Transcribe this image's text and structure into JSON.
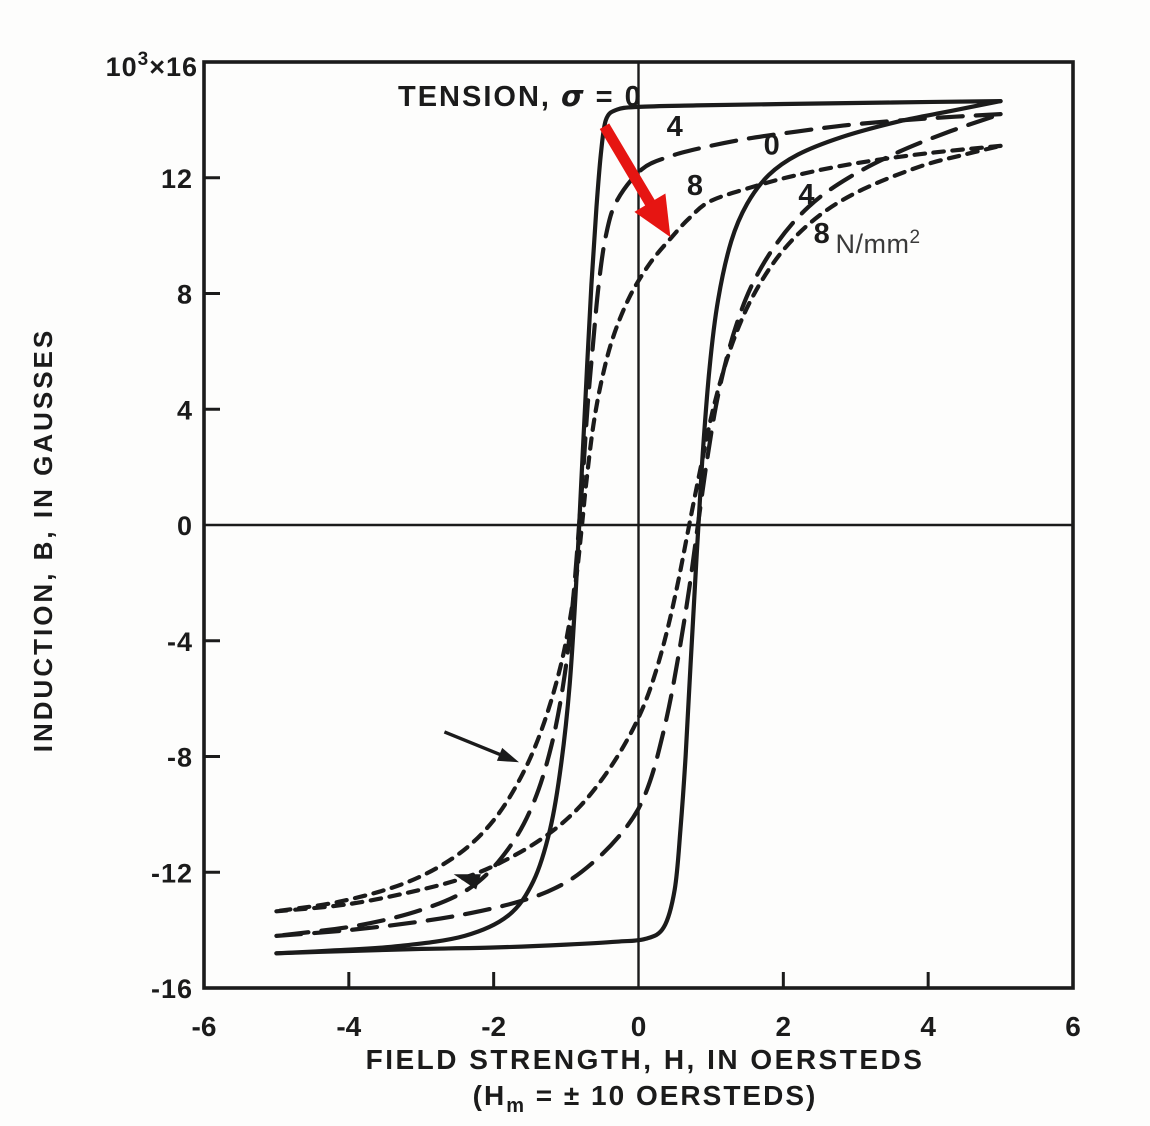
{
  "figure": {
    "background": "#fdfdfc",
    "ink_color": "#1b1b1b",
    "annotation_red": "#e61512",
    "unit_text_color": "#3a3a3a"
  },
  "chart_data": {
    "type": "line",
    "title": "TENSION, σ = 0",
    "xlabel": "FIELD STRENGTH, H, IN OERSTEDS",
    "xlabel_note": "(Hm = ± 10 OERSTEDS)",
    "ylabel": "INDUCTION, B, IN GAUSSES",
    "y_scale_label": "10³×16",
    "y_units": "10³ gauss",
    "unit_label": "N/mm²",
    "xlim": [
      -6,
      6
    ],
    "ylim": [
      -16,
      16
    ],
    "grid": false,
    "legend": "curve labels inline (tension sigma in N/mm²: 0 solid, 4 long-dash, 8 short-dash)",
    "text_parts": {
      "title_prefix": "TENSION, ",
      "title_sigma": "σ",
      "title_eq": " = 0",
      "scale_base": "10",
      "scale_exp": "3",
      "scale_mult": "×16",
      "note_open": "(H",
      "note_sub": "m",
      "note_rest": " = ± 10 OERSTEDS)",
      "unit_base": "N/mm",
      "unit_exp": "2"
    },
    "x_ticks": [
      {
        "value": -6,
        "label": "-6"
      },
      {
        "value": -4,
        "label": "-4"
      },
      {
        "value": -2,
        "label": "-2"
      },
      {
        "value": 0,
        "label": "0"
      },
      {
        "value": 2,
        "label": "2"
      },
      {
        "value": 4,
        "label": "4"
      },
      {
        "value": 6,
        "label": "6"
      }
    ],
    "y_ticks": [
      {
        "value": 12,
        "label": "12"
      },
      {
        "value": 8,
        "label": "8"
      },
      {
        "value": 4,
        "label": "4"
      },
      {
        "value": 0,
        "label": "0"
      },
      {
        "value": -4,
        "label": "-4"
      },
      {
        "value": -8,
        "label": "-8"
      },
      {
        "value": -12,
        "label": "-12"
      },
      {
        "value": -16,
        "label": "-16"
      }
    ],
    "x_tick_marks": [
      -4,
      -2,
      2,
      4
    ],
    "y_tick_marks": [
      12,
      8,
      4,
      -4,
      -8,
      -12
    ],
    "series": [
      {
        "name": "sigma-0",
        "sigma": 0,
        "style": "solid",
        "descending": [
          [
            5,
            14.65
          ],
          [
            3.5,
            14.6
          ],
          [
            2,
            14.55
          ],
          [
            0.8,
            14.5
          ],
          [
            0,
            14.45
          ],
          [
            -0.3,
            14.35
          ],
          [
            -0.45,
            14.0
          ],
          [
            -0.52,
            12.8
          ],
          [
            -0.58,
            11.0
          ],
          [
            -0.65,
            8.3
          ],
          [
            -0.72,
            5.0
          ],
          [
            -0.79,
            1.5
          ],
          [
            -0.86,
            -2.0
          ],
          [
            -0.95,
            -5.5
          ],
          [
            -1.07,
            -8.3
          ],
          [
            -1.22,
            -10.5
          ],
          [
            -1.45,
            -12.3
          ],
          [
            -1.8,
            -13.5
          ],
          [
            -2.4,
            -14.2
          ],
          [
            -3.3,
            -14.55
          ],
          [
            -4.2,
            -14.7
          ],
          [
            -5,
            -14.8
          ]
        ],
        "ascending": [
          [
            -5,
            -14.8
          ],
          [
            -4,
            -14.72
          ],
          [
            -3,
            -14.65
          ],
          [
            -2,
            -14.6
          ],
          [
            -1,
            -14.5
          ],
          [
            -0.3,
            -14.4
          ],
          [
            0.1,
            -14.3
          ],
          [
            0.35,
            -13.9
          ],
          [
            0.5,
            -12.6
          ],
          [
            0.58,
            -10.5
          ],
          [
            0.65,
            -8.0
          ],
          [
            0.72,
            -4.8
          ],
          [
            0.8,
            -1.2
          ],
          [
            0.88,
            2.2
          ],
          [
            0.98,
            5.4
          ],
          [
            1.1,
            7.8
          ],
          [
            1.28,
            9.8
          ],
          [
            1.5,
            11.1
          ],
          [
            1.8,
            12.1
          ],
          [
            2.2,
            12.8
          ],
          [
            2.8,
            13.4
          ],
          [
            3.6,
            13.95
          ],
          [
            4.3,
            14.3
          ],
          [
            5,
            14.65
          ]
        ]
      },
      {
        "name": "sigma-4",
        "sigma": 4,
        "style": "long-dash",
        "descending": [
          [
            5,
            14.2
          ],
          [
            4,
            14.05
          ],
          [
            3,
            13.85
          ],
          [
            2.2,
            13.6
          ],
          [
            1.5,
            13.35
          ],
          [
            0.9,
            13.05
          ],
          [
            0.45,
            12.75
          ],
          [
            0.05,
            12.3
          ],
          [
            -0.3,
            11.2
          ],
          [
            -0.45,
            10.0
          ],
          [
            -0.55,
            8.3
          ],
          [
            -0.63,
            6.2
          ],
          [
            -0.7,
            4.2
          ],
          [
            -0.76,
            2.0
          ],
          [
            -0.82,
            0
          ],
          [
            -0.9,
            -2.5
          ],
          [
            -1.02,
            -5.2
          ],
          [
            -1.2,
            -7.6
          ],
          [
            -1.45,
            -9.6
          ],
          [
            -1.8,
            -11.2
          ],
          [
            -2.3,
            -12.5
          ],
          [
            -3.0,
            -13.3
          ],
          [
            -3.9,
            -13.85
          ],
          [
            -5,
            -14.2
          ]
        ],
        "ascending": [
          [
            -5,
            -14.2
          ],
          [
            -4,
            -14.0
          ],
          [
            -3,
            -13.7
          ],
          [
            -2.2,
            -13.35
          ],
          [
            -1.5,
            -12.9
          ],
          [
            -1.0,
            -12.35
          ],
          [
            -0.6,
            -11.6
          ],
          [
            -0.25,
            -10.7
          ],
          [
            0.0,
            -9.8
          ],
          [
            0.18,
            -8.7
          ],
          [
            0.33,
            -7.3
          ],
          [
            0.46,
            -5.8
          ],
          [
            0.58,
            -4.1
          ],
          [
            0.7,
            -2.2
          ],
          [
            0.82,
            0
          ],
          [
            0.95,
            2.3
          ],
          [
            1.1,
            4.5
          ],
          [
            1.3,
            6.5
          ],
          [
            1.55,
            8.2
          ],
          [
            1.9,
            9.7
          ],
          [
            2.35,
            11.0
          ],
          [
            2.9,
            12.0
          ],
          [
            3.6,
            12.9
          ],
          [
            4.3,
            13.6
          ],
          [
            5,
            14.2
          ]
        ]
      },
      {
        "name": "sigma-8",
        "sigma": 8,
        "style": "short-dash",
        "descending": [
          [
            5,
            13.1
          ],
          [
            4,
            12.85
          ],
          [
            3,
            12.5
          ],
          [
            2.2,
            12.1
          ],
          [
            1.6,
            11.7
          ],
          [
            1.0,
            11.2
          ],
          [
            0.7,
            10.6
          ],
          [
            0.46,
            9.95
          ],
          [
            0.16,
            9.05
          ],
          [
            -0.12,
            7.9
          ],
          [
            -0.35,
            6.5
          ],
          [
            -0.5,
            5.1
          ],
          [
            -0.62,
            3.5
          ],
          [
            -0.72,
            1.5
          ],
          [
            -0.78,
            0
          ],
          [
            -0.88,
            -2.2
          ],
          [
            -1.05,
            -4.6
          ],
          [
            -1.3,
            -6.8
          ],
          [
            -1.6,
            -8.6
          ],
          [
            -2.0,
            -10.2
          ],
          [
            -2.5,
            -11.4
          ],
          [
            -3.2,
            -12.35
          ],
          [
            -4.1,
            -13.0
          ],
          [
            -5,
            -13.35
          ]
        ],
        "ascending": [
          [
            -5,
            -13.35
          ],
          [
            -4,
            -13.1
          ],
          [
            -3,
            -12.6
          ],
          [
            -2.3,
            -12.1
          ],
          [
            -1.7,
            -11.4
          ],
          [
            -1.2,
            -10.6
          ],
          [
            -0.8,
            -9.7
          ],
          [
            -0.45,
            -8.6
          ],
          [
            -0.15,
            -7.4
          ],
          [
            0.08,
            -6.2
          ],
          [
            0.26,
            -4.9
          ],
          [
            0.42,
            -3.4
          ],
          [
            0.56,
            -1.8
          ],
          [
            0.7,
            0
          ],
          [
            0.86,
            2.0
          ],
          [
            1.05,
            4.2
          ],
          [
            1.3,
            6.3
          ],
          [
            1.6,
            8.0
          ],
          [
            2.0,
            9.5
          ],
          [
            2.5,
            10.7
          ],
          [
            3.1,
            11.6
          ],
          [
            3.9,
            12.4
          ],
          [
            4.5,
            12.8
          ],
          [
            5,
            13.1
          ]
        ]
      }
    ],
    "curve_labels": [
      {
        "text": "4",
        "series": "sigma-4",
        "branch": "descending",
        "pos": [
          0.5,
          13.45
        ]
      },
      {
        "text": "8",
        "series": "sigma-8",
        "branch": "descending",
        "pos": [
          0.78,
          11.4
        ]
      },
      {
        "text": "0",
        "series": "sigma-0",
        "branch": "ascending",
        "pos": [
          1.84,
          12.8
        ]
      },
      {
        "text": "4",
        "series": "sigma-4",
        "branch": "ascending",
        "pos": [
          2.32,
          11.1
        ]
      },
      {
        "text": "8",
        "series": "sigma-8",
        "branch": "ascending",
        "pos": [
          2.53,
          9.75
        ]
      }
    ],
    "annotations": {
      "unit_label_pos": [
        2.72,
        9.4
      ],
      "red_arrow": {
        "from": [
          -0.47,
          13.78
        ],
        "to": [
          0.44,
          9.95
        ]
      },
      "black_arrow": {
        "from": [
          -2.68,
          -7.15
        ],
        "to": [
          -1.65,
          -8.2
        ]
      },
      "direction_arrowhead": {
        "at": [
          -2.38,
          -12.2
        ],
        "angle_deg": 197
      }
    }
  }
}
